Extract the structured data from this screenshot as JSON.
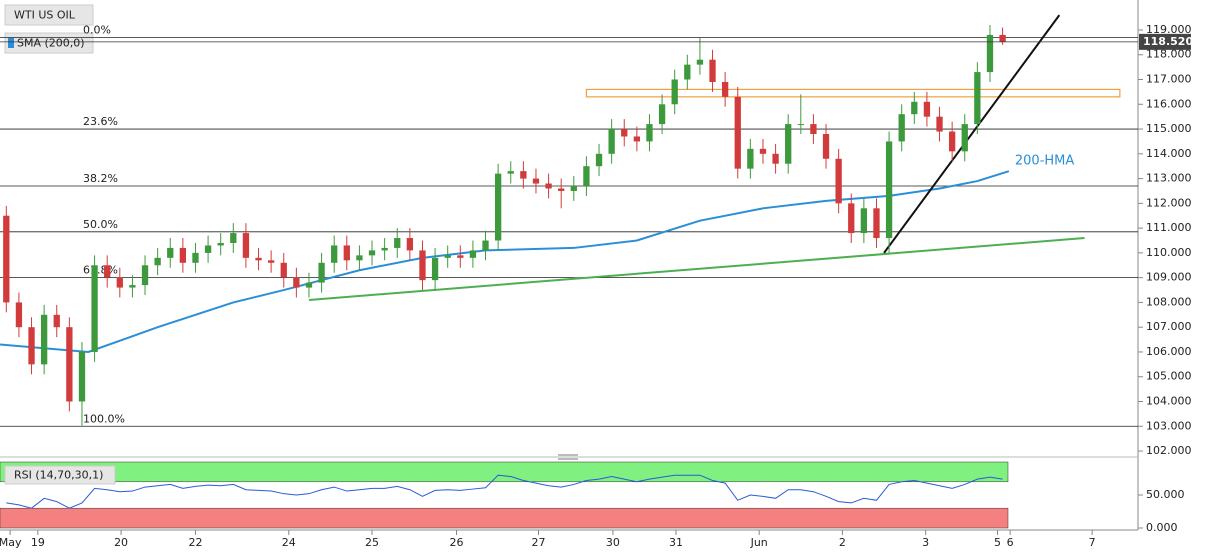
{
  "chart_data": {
    "type": "candlestick",
    "title": "WTI US OIL",
    "indicator_label": "SMA (200,0)",
    "up_color": "#3c9a3c",
    "down_color": "#d23b3b",
    "xlim": [
      -0.5,
      89.5
    ],
    "ylim": [
      101.84,
      120.21
    ],
    "xticks": [
      {
        "value": 0.3,
        "label": "May"
      },
      {
        "value": 2.5,
        "label": "19"
      },
      {
        "value": 9.1,
        "label": "20"
      },
      {
        "value": 15.0,
        "label": "22"
      },
      {
        "value": 22.4,
        "label": "24"
      },
      {
        "value": 29.0,
        "label": "25"
      },
      {
        "value": 35.7,
        "label": "26"
      },
      {
        "value": 42.2,
        "label": "27"
      },
      {
        "value": 48.1,
        "label": "30"
      },
      {
        "value": 53.1,
        "label": "31"
      },
      {
        "value": 59.7,
        "label": "Jun"
      },
      {
        "value": 66.3,
        "label": "2"
      },
      {
        "value": 72.9,
        "label": "3"
      },
      {
        "value": 78.6,
        "label": "5"
      },
      {
        "value": 79.6,
        "label": "6"
      },
      {
        "value": 86.1,
        "label": "7"
      }
    ],
    "yticks": [
      {
        "value": 102,
        "label": "102.000"
      },
      {
        "value": 103,
        "label": "103.000"
      },
      {
        "value": 104,
        "label": "104.000"
      },
      {
        "value": 105,
        "label": "105.000"
      },
      {
        "value": 106,
        "label": "106.000"
      },
      {
        "value": 107,
        "label": "107.000"
      },
      {
        "value": 108,
        "label": "108.000"
      },
      {
        "value": 109,
        "label": "109.000"
      },
      {
        "value": 110,
        "label": "110.000"
      },
      {
        "value": 111,
        "label": "111.000"
      },
      {
        "value": 112,
        "label": "112.000"
      },
      {
        "value": 113,
        "label": "113.000"
      },
      {
        "value": 114,
        "label": "114.000"
      },
      {
        "value": 115,
        "label": "115.000"
      },
      {
        "value": 116,
        "label": "116.000"
      },
      {
        "value": 117,
        "label": "117.000"
      },
      {
        "value": 118,
        "label": "118.000"
      },
      {
        "value": 119,
        "label": "119.000"
      }
    ],
    "open": [
      111.5,
      108,
      107,
      105.5,
      107.5,
      107,
      104,
      106,
      109.5,
      109,
      108.6,
      108.7,
      109.5,
      109.8,
      110.2,
      109.6,
      110,
      110.3,
      110.4,
      110.8,
      109.8,
      109.7,
      109.6,
      109,
      108.6,
      108.8,
      109.6,
      110.3,
      109.7,
      109.9,
      110.1,
      110.2,
      110.6,
      110.1,
      108.9,
      109.8,
      109.9,
      109.8,
      110.1,
      110.5,
      113.2,
      113.3,
      113,
      112.8,
      112.6,
      112.5,
      112.7,
      113.5,
      114,
      115,
      114.7,
      114.5,
      115.2,
      116,
      117,
      117.6,
      117.8,
      116.9,
      116.3,
      113.4,
      114.2,
      114,
      113.6,
      115.2,
      115.2,
      114.8,
      113.8,
      112,
      110.8,
      111.8,
      110.6,
      114.5,
      115.6,
      116.1,
      115.5,
      114.9,
      114.1,
      115.2,
      117.3,
      118.8
    ],
    "high": [
      111.9,
      108.4,
      107.4,
      107.9,
      107.9,
      107.4,
      106.4,
      109.9,
      109.9,
      109.4,
      109.1,
      109.9,
      110.2,
      110.6,
      110.6,
      110.4,
      110.7,
      110.8,
      111.2,
      111.2,
      110.2,
      110.1,
      110,
      109.4,
      109.2,
      110,
      110.7,
      110.7,
      110.3,
      110.5,
      110.6,
      111,
      111,
      110.5,
      110.2,
      110.3,
      110.3,
      110.5,
      110.9,
      113.6,
      113.7,
      113.7,
      113.4,
      113.2,
      113,
      113.1,
      113.9,
      114.4,
      115.4,
      115.4,
      115.1,
      115.6,
      116.4,
      117.4,
      118,
      118.7,
      118.2,
      117.3,
      116.7,
      114.6,
      114.6,
      114.4,
      115.6,
      116.4,
      115.6,
      115.2,
      114.2,
      112.4,
      112.2,
      112.2,
      114.9,
      116,
      116.5,
      116.5,
      115.9,
      115.3,
      115.6,
      117.7,
      119.2,
      119.1
    ],
    "low": [
      107.6,
      106.6,
      105.1,
      105.1,
      106.6,
      103.6,
      103.0,
      105.6,
      108.6,
      108.2,
      108.2,
      108.3,
      109.1,
      109.4,
      109.2,
      109.2,
      109.6,
      109.9,
      110,
      109.4,
      109.3,
      109.2,
      108.6,
      108.2,
      108.2,
      108.4,
      109.2,
      109.3,
      109.3,
      109.5,
      109.7,
      109.8,
      109.7,
      108.5,
      108.5,
      109.4,
      109.4,
      109.4,
      109.7,
      110.1,
      112.8,
      112.6,
      112.4,
      112.2,
      111.8,
      112.1,
      112.3,
      113.1,
      113.6,
      114.3,
      114.1,
      114.1,
      114.8,
      115.6,
      116.6,
      117.2,
      116.5,
      115.9,
      113.0,
      113,
      113.6,
      113.2,
      113.2,
      114.8,
      114.4,
      113.4,
      111.6,
      110.4,
      110.4,
      110.2,
      110.0,
      114.1,
      115.2,
      115.1,
      114.5,
      113.7,
      113.7,
      114.8,
      116.9,
      118.4
    ],
    "close": [
      108,
      107,
      105.5,
      107.5,
      107,
      104,
      106,
      109.5,
      109,
      108.6,
      108.7,
      109.5,
      109.8,
      110.2,
      109.6,
      110,
      110.3,
      110.4,
      110.8,
      109.8,
      109.7,
      109.6,
      109,
      108.6,
      108.8,
      109.6,
      110.3,
      109.7,
      109.9,
      110.1,
      110.2,
      110.6,
      110.1,
      108.9,
      109.8,
      109.9,
      109.8,
      110.1,
      110.5,
      113.2,
      113.3,
      113,
      112.8,
      112.6,
      112.5,
      112.7,
      113.5,
      114,
      115,
      114.7,
      114.5,
      115.2,
      116,
      117,
      117.6,
      117.8,
      116.9,
      116.3,
      113.4,
      114.2,
      114,
      113.6,
      115.2,
      115.2,
      114.8,
      113.8,
      112,
      110.8,
      111.8,
      110.6,
      114.5,
      115.6,
      116.1,
      115.5,
      114.9,
      114.1,
      115.2,
      117.3,
      118.8,
      118.52
    ],
    "last": {
      "value": 118.52,
      "label": "118.520"
    },
    "fibonacci": [
      {
        "label": "0.0%",
        "value": 118.7
      },
      {
        "label": "23.6%",
        "value": 115.0
      },
      {
        "label": "38.2%",
        "value": 112.7
      },
      {
        "label": "50.0%",
        "value": 110.85
      },
      {
        "label": "61.8%",
        "value": 109.0
      },
      {
        "label": "100.0%",
        "value": 103.0
      }
    ],
    "hma": {
      "name": "200-HMA",
      "color": "#2a8fd8",
      "x": [
        -0.5,
        6.5,
        12,
        18,
        22,
        28,
        33,
        38,
        45,
        50,
        55,
        60,
        65,
        70,
        74,
        77,
        79.5
      ],
      "values": [
        106.3,
        106.0,
        107,
        108,
        108.5,
        109.3,
        109.8,
        110.1,
        110.2,
        110.5,
        111.3,
        111.8,
        112.1,
        112.3,
        112.6,
        112.9,
        113.3
      ]
    },
    "trendlines": [
      {
        "color": "#4caf50",
        "x": [
          24,
          85.5
        ],
        "y": [
          108.1,
          110.6
        ]
      },
      {
        "color": "#111111",
        "x": [
          69.6,
          83.5
        ],
        "y": [
          110.0,
          119.6
        ]
      }
    ],
    "zone": {
      "color": "#f0a040",
      "x": [
        46,
        88.3
      ],
      "y": [
        116.3,
        116.6
      ]
    },
    "rsi": {
      "label": "RSI (14,70,30,1)",
      "color": "#2a5ad8",
      "ylim": [
        0,
        100
      ],
      "upper": 70,
      "lower": 30,
      "yticks": [
        {
          "value": 50,
          "label": "50.000"
        },
        {
          "value": 0,
          "label": "0.000"
        }
      ],
      "values": [
        38,
        35,
        30,
        45,
        40,
        30,
        38,
        60,
        58,
        55,
        56,
        62,
        64,
        66,
        60,
        63,
        65,
        64,
        66,
        58,
        57,
        56,
        52,
        50,
        52,
        58,
        62,
        56,
        58,
        60,
        60,
        63,
        58,
        48,
        57,
        58,
        57,
        59,
        61,
        80,
        78,
        72,
        68,
        64,
        62,
        66,
        72,
        74,
        78,
        74,
        70,
        74,
        77,
        80,
        80,
        80,
        72,
        68,
        42,
        50,
        48,
        45,
        58,
        58,
        55,
        48,
        40,
        38,
        45,
        42,
        66,
        70,
        72,
        68,
        64,
        60,
        66,
        74,
        77,
        74
      ]
    }
  }
}
